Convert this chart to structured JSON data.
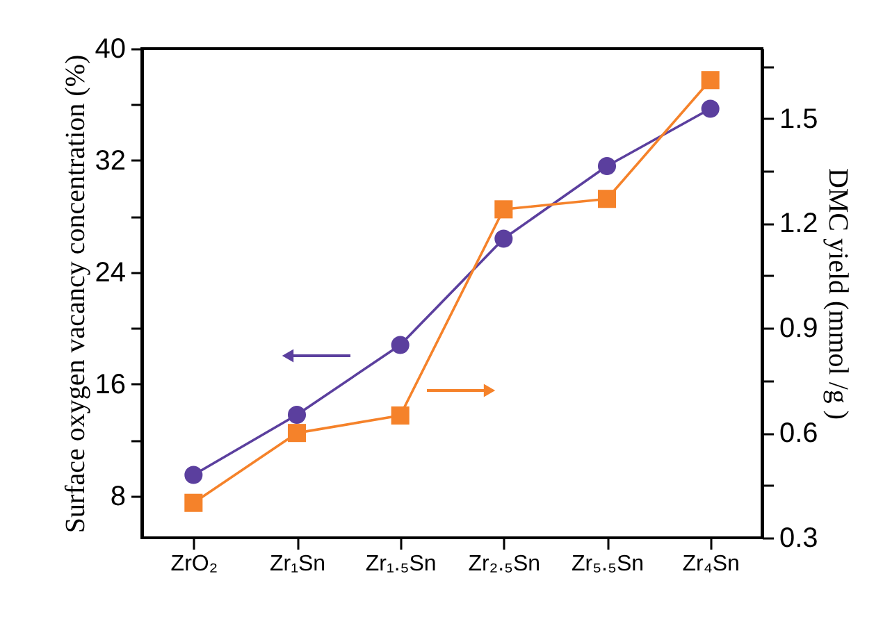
{
  "chart_data": {
    "type": "line",
    "ylabel": "Surface oxygen vacancy concentration (%)",
    "y2label": "DMC yield (mmol /g )",
    "categories": [
      "ZrO₂",
      "Zr₁Sn",
      "Zr₁.₅Sn",
      "Zr₂.₅Sn",
      "Zr₅.₅Sn",
      "Zr₄Sn"
    ],
    "series": [
      {
        "color": "#5b3f9e",
        "marker": "circle",
        "values": [
          9.5,
          13.8,
          18.8,
          26.4,
          31.6,
          35.7
        ]
      },
      {
        "color": "#f5822a",
        "marker": "square",
        "axis": "y2",
        "values": [
          0.4,
          0.6,
          0.65,
          1.24,
          1.27,
          1.61
        ]
      }
    ],
    "ylim": [
      5,
      40
    ],
    "yticks": [
      8,
      {
        "value": 12,
        "label": null
      },
      16,
      {
        "value": 20,
        "label": null
      },
      24,
      {
        "value": 28,
        "label": null
      },
      32,
      {
        "value": 36,
        "label": null
      },
      40
    ],
    "y2lim": [
      0.3,
      1.7
    ],
    "y2ticks": [
      0.3,
      {
        "value": 0.45,
        "label": null
      },
      0.6,
      {
        "value": 0.75,
        "label": null
      },
      0.9,
      {
        "value": 1.05,
        "label": null
      },
      1.2,
      {
        "value": 1.35,
        "label": null
      },
      1.5,
      {
        "value": 1.65,
        "label": null
      }
    ],
    "grid": false,
    "line_style": "solid"
  }
}
